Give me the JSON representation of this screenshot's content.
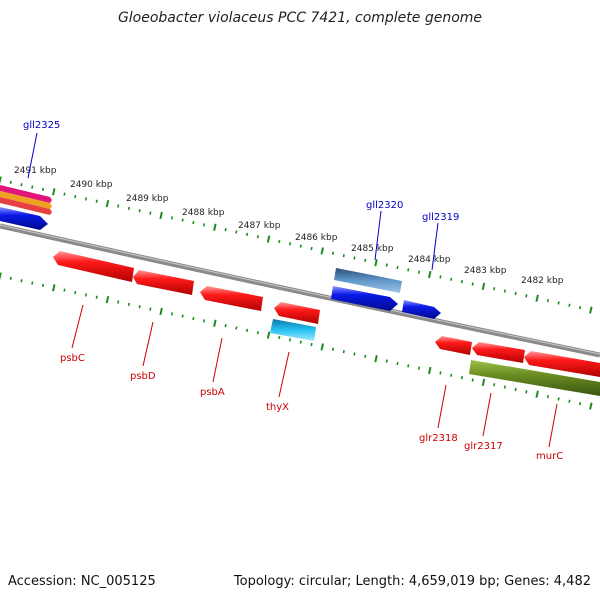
{
  "title": "Gloeobacter violaceus PCC 7421, complete genome",
  "footer": {
    "accession": "Accession: NC_005125",
    "summary": "Topology: circular; Length: 4,659,019 bp; Genes: 4,482"
  },
  "scale": {
    "labels": [
      "2491 kbp",
      "2490 kbp",
      "2489 kbp",
      "2488 kbp",
      "2487 kbp",
      "2486 kbp",
      "2485 kbp",
      "2484 kbp",
      "2483 kbp",
      "2482 kbp"
    ]
  },
  "colors": {
    "backbone": "#8a8a8a",
    "tick": "#1f8a1f",
    "forward_label": "#0000cc",
    "reverse_label": "#cc0000",
    "red_gene": "#ee1111",
    "blue_gene": "#0a1ae8",
    "steelblue_gene": "#4682b4",
    "cyan_gene": "#1ec0ee",
    "olive_gene": "#6b8e23"
  },
  "genes": {
    "forward": [
      {
        "name": "gll2325"
      },
      {
        "name": "gll2320"
      },
      {
        "name": "gll2319"
      }
    ],
    "reverse": [
      {
        "name": "psbC"
      },
      {
        "name": "psbD"
      },
      {
        "name": "psbA"
      },
      {
        "name": "thyX"
      },
      {
        "name": "glr2318"
      },
      {
        "name": "glr2317"
      },
      {
        "name": "murC"
      }
    ]
  }
}
